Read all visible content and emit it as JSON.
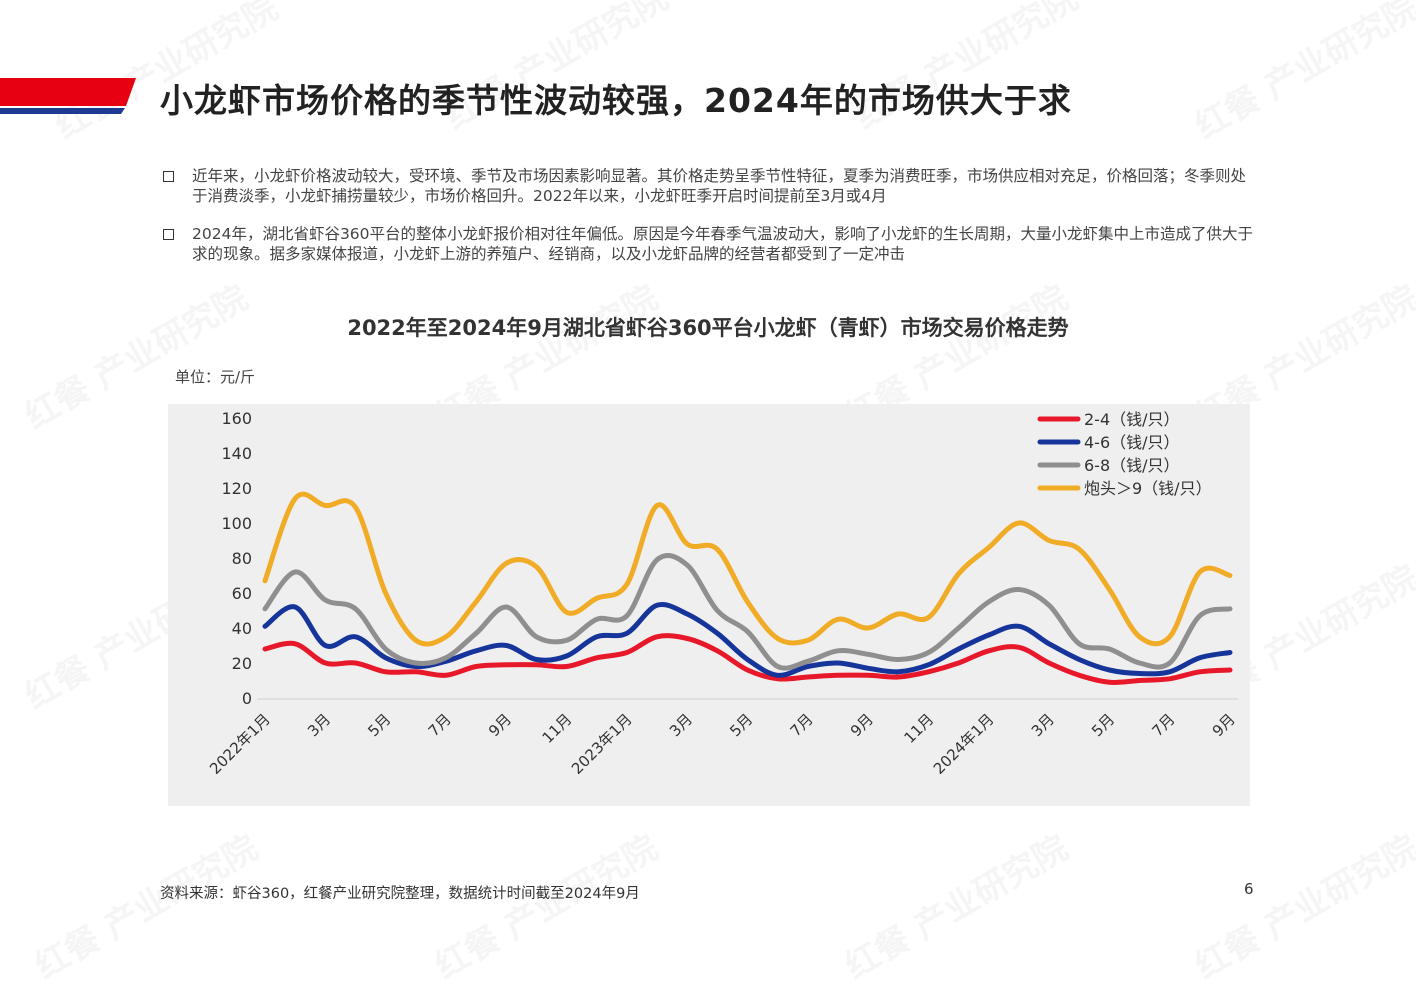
{
  "header": {
    "title": "小龙虾市场价格的季节性波动较强，2024年的市场供大于求",
    "accent_red": "#e60012",
    "accent_blue": "#1f3a93"
  },
  "bullets": [
    "近年来，小龙虾价格波动较大，受环境、季节及市场因素影响显著。其价格走势呈季节性特征，夏季为消费旺季，市场供应相对充足，价格回落；冬季则处于消费淡季，小龙虾捕捞量较少，市场价格回升。2022年以来，小龙虾旺季开启时间提前至3月或4月",
    "2024年，湖北省虾谷360平台的整体小龙虾报价相对往年偏低。原因是今年春季气温波动大，影响了小龙虾的生长周期，大量小龙虾集中上市造成了供大于求的现象。据多家媒体报道，小龙虾上游的养殖户、经销商，以及小龙虾品牌的经营者都受到了一定冲击"
  ],
  "watermark_text": "红餐 产业研究院",
  "footer": {
    "source": "资料来源：虾谷360，红餐产业研究院整理，数据统计时间截至2024年9月",
    "page": "6"
  },
  "chart_data": {
    "type": "line",
    "title": "2022年至2024年9月湖北省虾谷360平台小龙虾（青虾）市场交易价格走势",
    "unit_label": "单位：元/斤",
    "ylim": [
      0,
      160
    ],
    "yticks": [
      "0",
      "20",
      "40",
      "60",
      "80",
      "100",
      "120",
      "140",
      "160"
    ],
    "xtick_labels": [
      "2022年1月",
      "3月",
      "5月",
      "7月",
      "9月",
      "11月",
      "2023年1月",
      "3月",
      "5月",
      "7月",
      "9月",
      "11月",
      "2024年1月",
      "3月",
      "5月",
      "7月",
      "9月"
    ],
    "grid": false,
    "legend_position": "top-right",
    "background": "#efefef",
    "series": [
      {
        "name": "2-4（钱/只）",
        "color": "#e8182b",
        "values": [
          28,
          31,
          20,
          20,
          15,
          15,
          13,
          18,
          19,
          19,
          18,
          23,
          26,
          35,
          34,
          27,
          16,
          11,
          12,
          13,
          13,
          12,
          15,
          20,
          27,
          29,
          20,
          13,
          9,
          10,
          11,
          15,
          16
        ]
      },
      {
        "name": "4-6（钱/只）",
        "color": "#16359b",
        "values": [
          41,
          52,
          30,
          35,
          23,
          18,
          21,
          27,
          30,
          22,
          24,
          35,
          37,
          53,
          48,
          37,
          22,
          13,
          18,
          20,
          17,
          15,
          19,
          28,
          36,
          41,
          31,
          22,
          16,
          14,
          15,
          23,
          26
        ]
      },
      {
        "name": "6-8（钱/只）",
        "color": "#8f8f8f",
        "values": [
          51,
          72,
          56,
          51,
          28,
          20,
          23,
          37,
          52,
          35,
          33,
          45,
          47,
          79,
          76,
          50,
          38,
          18,
          21,
          27,
          25,
          22,
          26,
          40,
          55,
          62,
          53,
          31,
          28,
          20,
          20,
          47,
          51
        ]
      },
      {
        "name": "炮头＞9（钱/只）",
        "color": "#f0ac27",
        "values": [
          67,
          114,
          110,
          109,
          60,
          33,
          35,
          55,
          77,
          75,
          49,
          57,
          65,
          110,
          88,
          85,
          55,
          34,
          33,
          45,
          40,
          48,
          46,
          71,
          86,
          100,
          90,
          85,
          62,
          35,
          35,
          72,
          70
        ]
      }
    ]
  }
}
